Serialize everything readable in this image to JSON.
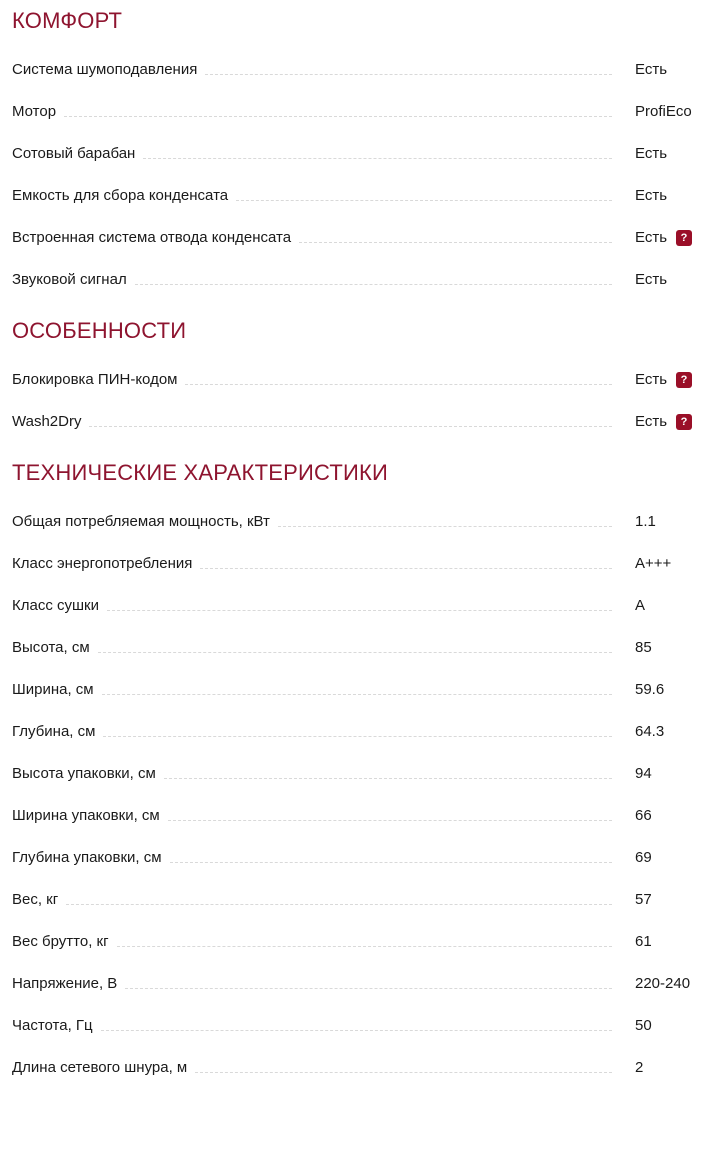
{
  "colors": {
    "heading": "#8e142f",
    "badge_bg": "#9a0f28",
    "text": "#1a1a1a",
    "leader": "#d9d9d9",
    "background": "#ffffff"
  },
  "help_icon": {
    "symbol": "?"
  },
  "sections": [
    {
      "title": "КОМФОРТ",
      "rows": [
        {
          "label": "Система шумоподавления",
          "value": "Есть",
          "help": false
        },
        {
          "label": "Мотор",
          "value": "ProfiEco",
          "help": false
        },
        {
          "label": "Сотовый барабан",
          "value": "Есть",
          "help": false
        },
        {
          "label": "Емкость для сбора конденсата",
          "value": "Есть",
          "help": false
        },
        {
          "label": "Встроенная система отвода конденсата",
          "value": "Есть",
          "help": true
        },
        {
          "label": "Звуковой сигнал",
          "value": "Есть",
          "help": false
        }
      ]
    },
    {
      "title": "ОСОБЕННОСТИ",
      "rows": [
        {
          "label": "Блокировка ПИН-кодом",
          "value": "Есть",
          "help": true
        },
        {
          "label": "Wash2Dry",
          "value": "Есть",
          "help": true
        }
      ]
    },
    {
      "title": "ТЕХНИЧЕСКИЕ ХАРАКТЕРИСТИКИ",
      "rows": [
        {
          "label": "Общая потребляемая мощность, кВт",
          "value": "1.1",
          "help": false
        },
        {
          "label": "Класс энергопотребления",
          "value": "A+++",
          "help": false
        },
        {
          "label": "Класс сушки",
          "value": "A",
          "help": false
        },
        {
          "label": "Высота, см",
          "value": "85",
          "help": false
        },
        {
          "label": "Ширина, см",
          "value": "59.6",
          "help": false
        },
        {
          "label": "Глубина, см",
          "value": "64.3",
          "help": false
        },
        {
          "label": "Высота упаковки, см",
          "value": "94",
          "help": false
        },
        {
          "label": "Ширина упаковки, см",
          "value": "66",
          "help": false
        },
        {
          "label": "Глубина упаковки, см",
          "value": "69",
          "help": false
        },
        {
          "label": "Вес, кг",
          "value": "57",
          "help": false
        },
        {
          "label": "Вес брутто, кг",
          "value": "61",
          "help": false
        },
        {
          "label": "Напряжение, В",
          "value": "220-240",
          "help": false
        },
        {
          "label": "Частота, Гц",
          "value": "50",
          "help": false
        },
        {
          "label": "Длина сетевого шнура, м",
          "value": "2",
          "help": false
        }
      ]
    }
  ]
}
